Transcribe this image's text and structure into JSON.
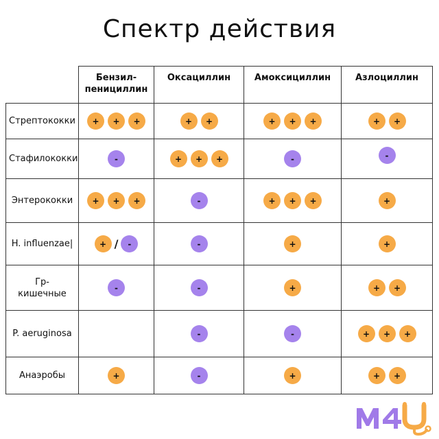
{
  "title": "Спектр действия",
  "columns": [
    [
      "Бензил-",
      "пенициллин"
    ],
    [
      "Оксациллин"
    ],
    [
      "Амоксициллин"
    ],
    [
      "Азлоциллин"
    ]
  ],
  "rows": [
    {
      "label": [
        "Стрептококки"
      ],
      "cells": [
        "+++",
        "++",
        "+++",
        "++"
      ]
    },
    {
      "label": [
        "Стафилококки"
      ],
      "cells": [
        "-",
        "+++",
        "-",
        "-"
      ]
    },
    {
      "label": [
        "Энтерококки"
      ],
      "cells": [
        "+++",
        "-",
        "+++",
        "+"
      ]
    },
    {
      "label": [
        "H. influenzae|"
      ],
      "cells": [
        "+/-",
        "-",
        "+",
        "+"
      ]
    },
    {
      "label": [
        "Гр-",
        "кишечные"
      ],
      "cells": [
        "-",
        "-",
        "+",
        "++"
      ]
    },
    {
      "label": [
        "P. aeruginosa"
      ],
      "cells": [
        "",
        "-",
        "-",
        "+++"
      ]
    },
    {
      "label": [
        "Анаэробы"
      ],
      "cells": [
        "+",
        "-",
        "+",
        "++"
      ]
    }
  ],
  "legend_symbols": {
    "plus": "+",
    "minus": "-",
    "separator": "/"
  },
  "colors": {
    "plus": "#f6aa47",
    "minus": "#a583ec",
    "logo_purple": "#a07ae8",
    "logo_orange": "#f6aa47"
  },
  "logo": {
    "m": "M",
    "four": "4",
    "u": "U"
  }
}
